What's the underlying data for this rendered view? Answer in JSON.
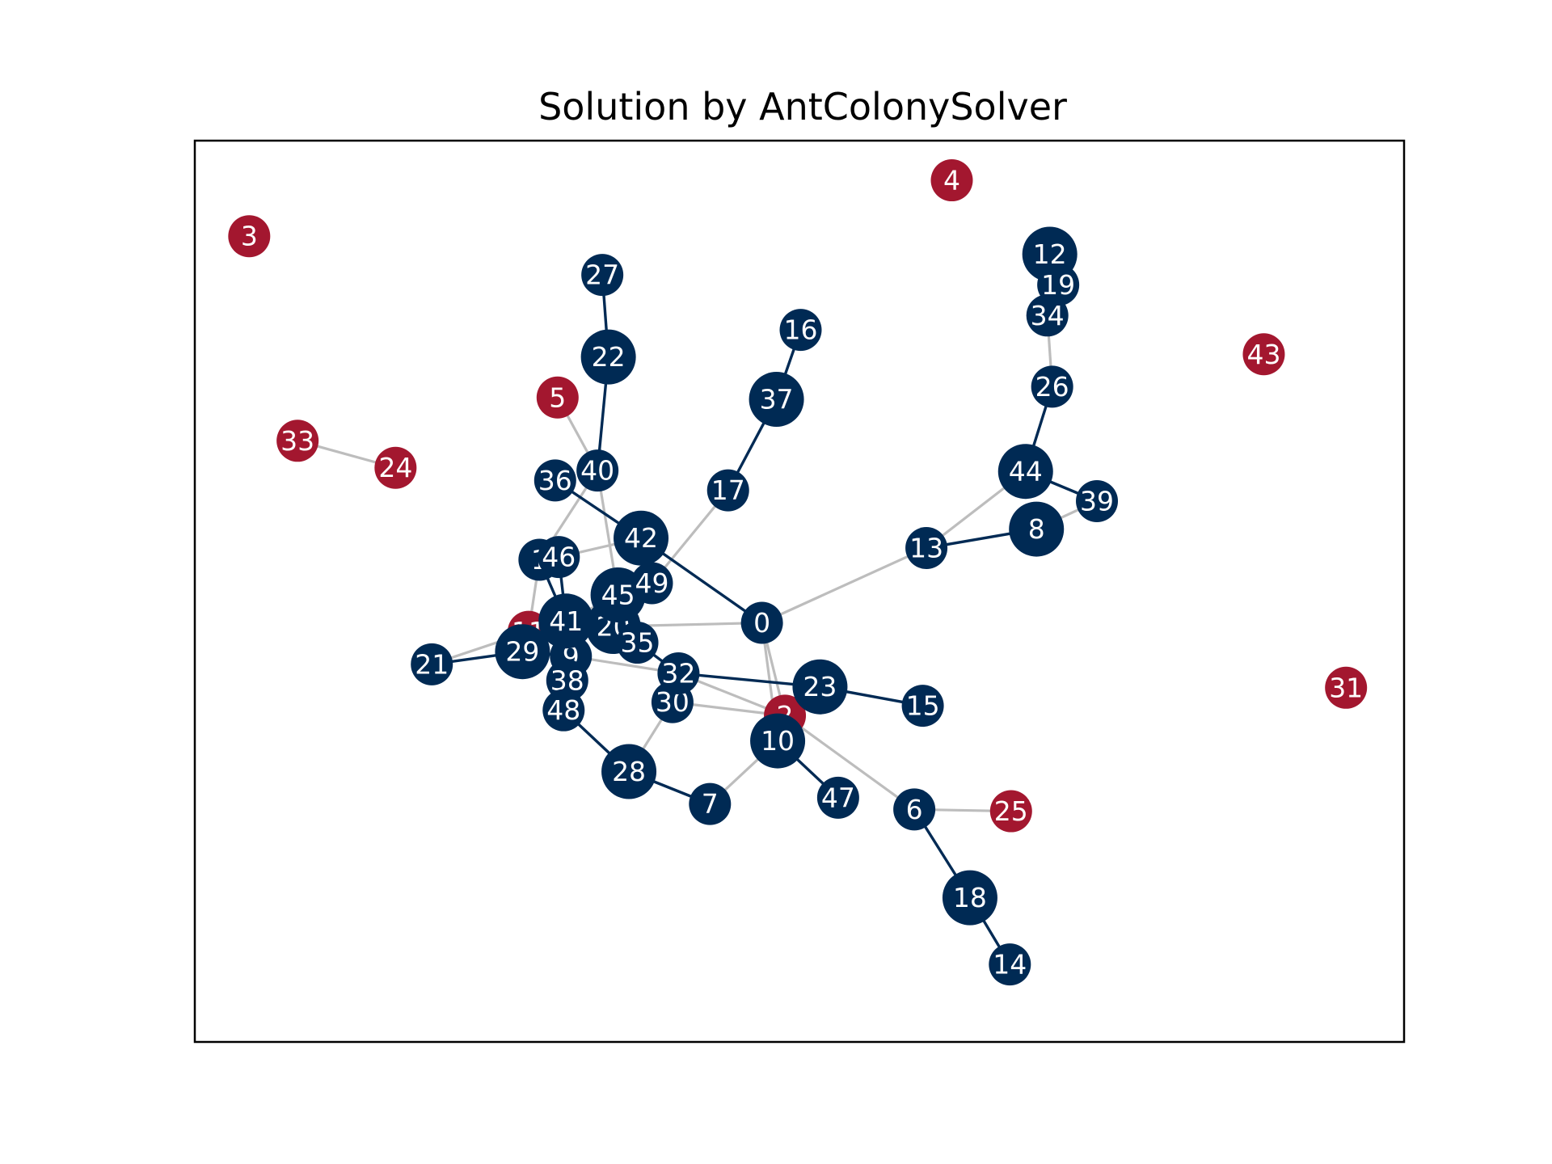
{
  "chart_data": {
    "type": "network",
    "title": "Solution by AntColonySolver",
    "colors": {
      "selected_node": "#002a54",
      "unselected_node": "#a3172f",
      "solution_edge": "#002a54",
      "other_edge": "#bdbdbd",
      "label": "#ffffff",
      "frame": "#000000"
    },
    "nodes": [
      {
        "id": "0",
        "x": 0.469,
        "y": 0.465,
        "selected": true,
        "size": "medium"
      },
      {
        "id": "1",
        "x": 0.285,
        "y": 0.535,
        "selected": true,
        "size": "medium"
      },
      {
        "id": "2",
        "x": 0.488,
        "y": 0.362,
        "selected": false,
        "size": "medium"
      },
      {
        "id": "3",
        "x": 0.045,
        "y": 0.894,
        "selected": false,
        "size": "medium"
      },
      {
        "id": "4",
        "x": 0.626,
        "y": 0.956,
        "selected": false,
        "size": "medium"
      },
      {
        "id": "5",
        "x": 0.3,
        "y": 0.715,
        "selected": false,
        "size": "medium"
      },
      {
        "id": "6",
        "x": 0.595,
        "y": 0.258,
        "selected": true,
        "size": "medium"
      },
      {
        "id": "7",
        "x": 0.426,
        "y": 0.264,
        "selected": true,
        "size": "medium"
      },
      {
        "id": "8",
        "x": 0.696,
        "y": 0.569,
        "selected": true,
        "size": "large"
      },
      {
        "id": "9",
        "x": 0.311,
        "y": 0.428,
        "selected": true,
        "size": "medium"
      },
      {
        "id": "10",
        "x": 0.482,
        "y": 0.334,
        "selected": true,
        "size": "large"
      },
      {
        "id": "11",
        "x": 0.276,
        "y": 0.455,
        "selected": false,
        "size": "medium"
      },
      {
        "id": "12",
        "x": 0.707,
        "y": 0.874,
        "selected": true,
        "size": "large"
      },
      {
        "id": "13",
        "x": 0.605,
        "y": 0.548,
        "selected": true,
        "size": "medium"
      },
      {
        "id": "14",
        "x": 0.674,
        "y": 0.086,
        "selected": true,
        "size": "medium"
      },
      {
        "id": "15",
        "x": 0.602,
        "y": 0.373,
        "selected": true,
        "size": "medium"
      },
      {
        "id": "16",
        "x": 0.501,
        "y": 0.79,
        "selected": true,
        "size": "medium"
      },
      {
        "id": "17",
        "x": 0.441,
        "y": 0.612,
        "selected": true,
        "size": "medium"
      },
      {
        "id": "18",
        "x": 0.641,
        "y": 0.16,
        "selected": true,
        "size": "large"
      },
      {
        "id": "19",
        "x": 0.714,
        "y": 0.84,
        "selected": true,
        "size": "medium"
      },
      {
        "id": "20",
        "x": 0.346,
        "y": 0.461,
        "selected": true,
        "size": "large"
      },
      {
        "id": "21",
        "x": 0.196,
        "y": 0.419,
        "selected": true,
        "size": "medium"
      },
      {
        "id": "22",
        "x": 0.342,
        "y": 0.76,
        "selected": true,
        "size": "large"
      },
      {
        "id": "23",
        "x": 0.517,
        "y": 0.394,
        "selected": true,
        "size": "large"
      },
      {
        "id": "24",
        "x": 0.166,
        "y": 0.637,
        "selected": false,
        "size": "medium"
      },
      {
        "id": "25",
        "x": 0.675,
        "y": 0.256,
        "selected": false,
        "size": "medium"
      },
      {
        "id": "26",
        "x": 0.709,
        "y": 0.727,
        "selected": true,
        "size": "medium"
      },
      {
        "id": "27",
        "x": 0.337,
        "y": 0.851,
        "selected": true,
        "size": "medium"
      },
      {
        "id": "28",
        "x": 0.359,
        "y": 0.3,
        "selected": true,
        "size": "large"
      },
      {
        "id": "29",
        "x": 0.271,
        "y": 0.433,
        "selected": true,
        "size": "large"
      },
      {
        "id": "30",
        "x": 0.395,
        "y": 0.377,
        "selected": true,
        "size": "medium"
      },
      {
        "id": "31",
        "x": 0.952,
        "y": 0.393,
        "selected": false,
        "size": "medium"
      },
      {
        "id": "32",
        "x": 0.4,
        "y": 0.409,
        "selected": true,
        "size": "medium"
      },
      {
        "id": "33",
        "x": 0.085,
        "y": 0.667,
        "selected": false,
        "size": "medium"
      },
      {
        "id": "34",
        "x": 0.705,
        "y": 0.806,
        "selected": true,
        "size": "medium"
      },
      {
        "id": "35",
        "x": 0.366,
        "y": 0.443,
        "selected": true,
        "size": "medium"
      },
      {
        "id": "36",
        "x": 0.298,
        "y": 0.623,
        "selected": true,
        "size": "medium"
      },
      {
        "id": "37",
        "x": 0.481,
        "y": 0.713,
        "selected": true,
        "size": "large"
      },
      {
        "id": "38",
        "x": 0.308,
        "y": 0.401,
        "selected": true,
        "size": "medium"
      },
      {
        "id": "39",
        "x": 0.746,
        "y": 0.6,
        "selected": true,
        "size": "medium"
      },
      {
        "id": "40",
        "x": 0.333,
        "y": 0.634,
        "selected": true,
        "size": "medium"
      },
      {
        "id": "41",
        "x": 0.307,
        "y": 0.467,
        "selected": true,
        "size": "large"
      },
      {
        "id": "42",
        "x": 0.369,
        "y": 0.559,
        "selected": true,
        "size": "large"
      },
      {
        "id": "43",
        "x": 0.884,
        "y": 0.763,
        "selected": false,
        "size": "medium"
      },
      {
        "id": "44",
        "x": 0.687,
        "y": 0.633,
        "selected": true,
        "size": "large"
      },
      {
        "id": "45",
        "x": 0.35,
        "y": 0.496,
        "selected": true,
        "size": "large"
      },
      {
        "id": "46",
        "x": 0.301,
        "y": 0.538,
        "selected": true,
        "size": "medium"
      },
      {
        "id": "47",
        "x": 0.532,
        "y": 0.271,
        "selected": true,
        "size": "medium"
      },
      {
        "id": "48",
        "x": 0.305,
        "y": 0.368,
        "selected": true,
        "size": "medium"
      },
      {
        "id": "49",
        "x": 0.378,
        "y": 0.509,
        "selected": true,
        "size": "medium"
      }
    ],
    "edges_background": [
      [
        "0",
        "13"
      ],
      [
        "13",
        "44"
      ],
      [
        "8",
        "39"
      ],
      [
        "34",
        "26"
      ],
      [
        "0",
        "20"
      ],
      [
        "0",
        "2"
      ],
      [
        "0",
        "10"
      ],
      [
        "17",
        "49"
      ],
      [
        "2",
        "32"
      ],
      [
        "2",
        "30"
      ],
      [
        "2",
        "6"
      ],
      [
        "10",
        "7"
      ],
      [
        "30",
        "28"
      ],
      [
        "6",
        "25"
      ],
      [
        "33",
        "24"
      ],
      [
        "5",
        "40"
      ],
      [
        "40",
        "1"
      ],
      [
        "1",
        "11"
      ],
      [
        "40",
        "45"
      ],
      [
        "46",
        "42"
      ],
      [
        "21",
        "11"
      ],
      [
        "9",
        "32"
      ],
      [
        "41",
        "45"
      ]
    ],
    "edges_solution": [
      [
        "27",
        "22"
      ],
      [
        "22",
        "40"
      ],
      [
        "16",
        "37"
      ],
      [
        "37",
        "17"
      ],
      [
        "12",
        "19"
      ],
      [
        "19",
        "34"
      ],
      [
        "26",
        "44"
      ],
      [
        "44",
        "39"
      ],
      [
        "13",
        "8"
      ],
      [
        "36",
        "42"
      ],
      [
        "42",
        "0"
      ],
      [
        "1",
        "41"
      ],
      [
        "46",
        "41"
      ],
      [
        "41",
        "20"
      ],
      [
        "20",
        "35"
      ],
      [
        "35",
        "32"
      ],
      [
        "32",
        "23"
      ],
      [
        "23",
        "15"
      ],
      [
        "21",
        "29"
      ],
      [
        "29",
        "41"
      ],
      [
        "29",
        "9"
      ],
      [
        "9",
        "38"
      ],
      [
        "38",
        "48"
      ],
      [
        "48",
        "28"
      ],
      [
        "28",
        "7"
      ],
      [
        "10",
        "47"
      ],
      [
        "2",
        "10"
      ],
      [
        "6",
        "18"
      ],
      [
        "18",
        "14"
      ],
      [
        "45",
        "49"
      ]
    ]
  }
}
